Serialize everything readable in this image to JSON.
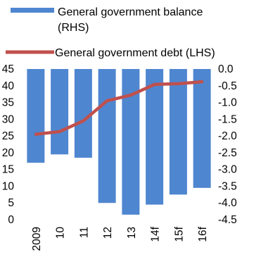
{
  "chart_data": {
    "type": "bar+line",
    "categories": [
      "2009",
      "10",
      "11",
      "12",
      "13",
      "14f",
      "15f",
      "16f"
    ],
    "series": [
      {
        "name": "General government balance (RHS)",
        "legend_lines": [
          "General government balance",
          "(RHS)"
        ],
        "type": "bar",
        "axis": "right",
        "color": "#4f86d0",
        "values": [
          -2.8,
          -2.55,
          -2.65,
          -4.0,
          -4.35,
          -4.05,
          -3.75,
          -3.55
        ]
      },
      {
        "name": "General government debt (LHS)",
        "legend_lines": [
          "General government debt (LHS)"
        ],
        "type": "line",
        "axis": "left",
        "color": "#c0504d",
        "values": [
          25.5,
          26.3,
          29.5,
          35.5,
          37.2,
          40.4,
          40.6,
          41.2
        ]
      }
    ],
    "left_axis": {
      "min": 0,
      "max": 45,
      "step": 5,
      "tick_labels": [
        "0",
        "5",
        "10",
        "15",
        "20",
        "25",
        "30",
        "35",
        "40",
        "45"
      ]
    },
    "right_axis": {
      "min": -4.5,
      "max": 0,
      "step": 0.5,
      "tick_labels": [
        "-4.5",
        "-4.0",
        "-3.5",
        "-3.0",
        "-2.5",
        "-2.0",
        "-1.5",
        "-1.0",
        "-0.5",
        "0.0"
      ]
    },
    "x_tick_rotation": "vertical",
    "grid": false,
    "legend_position": "top"
  }
}
